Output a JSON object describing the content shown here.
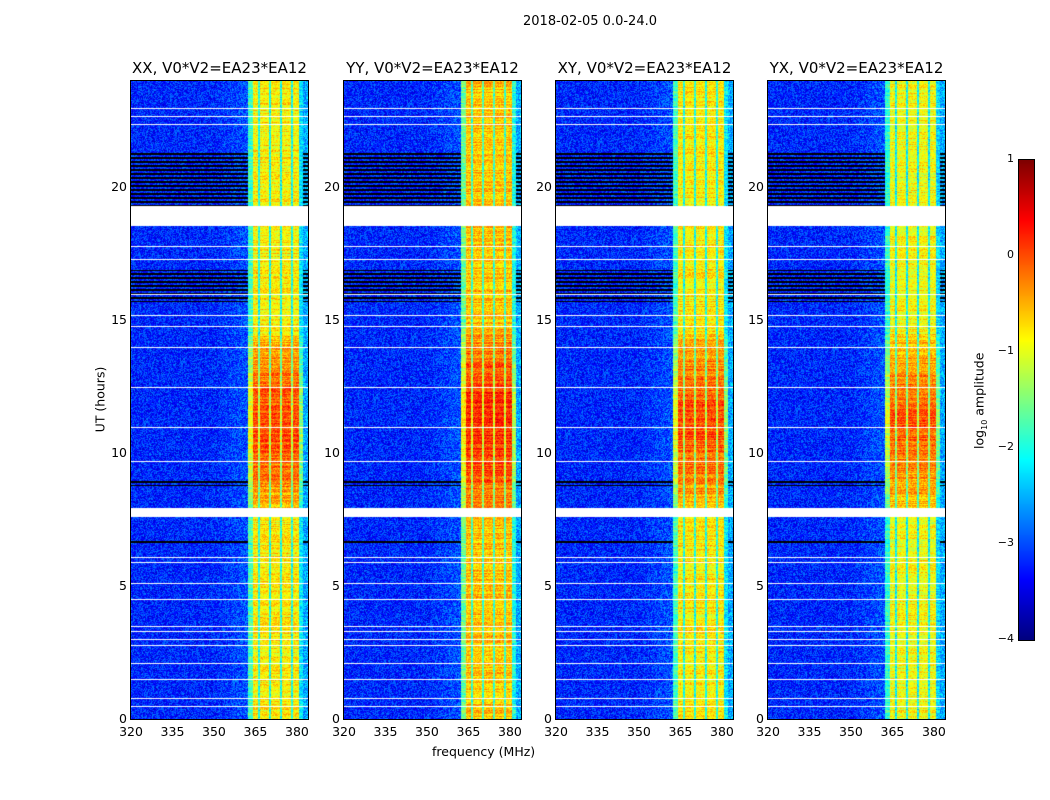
{
  "chart_data": {
    "type": "heatmap",
    "title": "2018-02-05 0.0-24.0",
    "xlabel": "frequency (MHz)",
    "ylabel": "UT (hours)",
    "xlim": [
      320,
      384
    ],
    "ylim": [
      0,
      24
    ],
    "xticks": [
      "320",
      "335",
      "350",
      "365",
      "380"
    ],
    "xtick_values": [
      320,
      335,
      350,
      365,
      380
    ],
    "yticks": [
      "0",
      "5",
      "10",
      "15",
      "20"
    ],
    "ytick_values": [
      0,
      5,
      10,
      15,
      20
    ],
    "colorbar": {
      "label_main": "log",
      "label_sub": "10",
      "label_tail": " amplitude",
      "colormap": "jet",
      "range": [
        -4,
        1
      ],
      "ticks": [
        "1",
        "0",
        "−1",
        "−2",
        "−3",
        "−4"
      ],
      "tick_values": [
        1,
        0,
        -1,
        -2,
        -3,
        -4
      ]
    },
    "panels": [
      {
        "title": "XX, V0*V2=EA23*EA12",
        "band_level": -0.8
      },
      {
        "title": "YY, V0*V2=EA23*EA12",
        "band_level": -0.6
      },
      {
        "title": "XY, V0*V2=EA23*EA12",
        "band_level": -0.8
      },
      {
        "title": "YX, V0*V2=EA23*EA12",
        "band_level": -0.9
      }
    ],
    "background_level": -3.2,
    "band_MHz": [
      362,
      382
    ],
    "channel_edges_MHz": [
      366,
      370,
      374,
      378
    ],
    "bright_hours": [
      7.8,
      14.5
    ],
    "flagged_gaps_hours": [
      [
        18.55,
        19.3
      ],
      [
        7.6,
        7.95
      ]
    ],
    "flagged_lines_hours": [
      0.5,
      0.8,
      1.5,
      2.1,
      2.8,
      3.0,
      3.3,
      3.5,
      4.5,
      5.1,
      5.9,
      6.1,
      9.7,
      11.0,
      12.5,
      14.0,
      14.8,
      15.2,
      16.0,
      17.3,
      17.8,
      22.4,
      22.7,
      23.0
    ],
    "dropout_hours": [
      [
        6.6,
        6.75
      ],
      [
        19.3,
        21.3
      ],
      [
        8.8,
        9.0
      ],
      [
        15.7,
        16.9
      ]
    ]
  }
}
